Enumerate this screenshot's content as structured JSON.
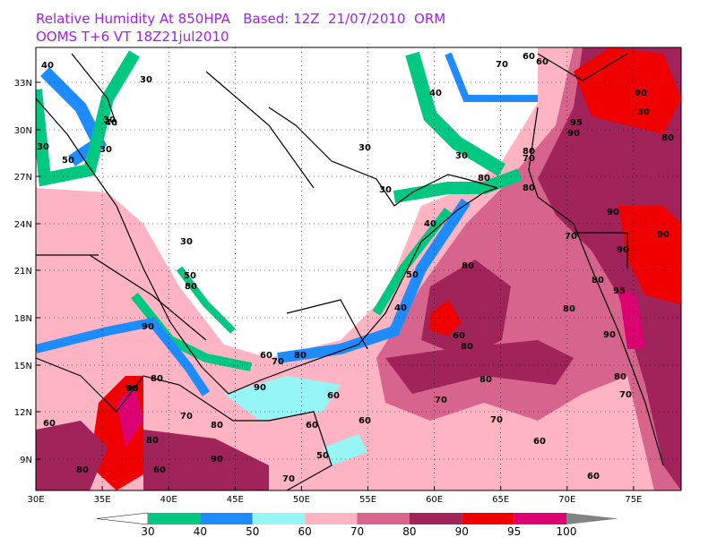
{
  "header": {
    "line1": "Relative Humidity At 850HPA   Based: 12Z  21/07/2010  ORM",
    "line2": "OOMS  T+6 VT 18Z21jul2010"
  },
  "map": {
    "lat_labels": [
      "33N",
      "30N",
      "27N",
      "24N",
      "21N",
      "18N",
      "15N",
      "12N",
      "9N"
    ],
    "lon_labels": [
      "30E",
      "35E",
      "40E",
      "45E",
      "50E",
      "55E",
      "60E",
      "65E",
      "70E",
      "75E"
    ],
    "contour_labels": [
      "40",
      "30",
      "40",
      "30",
      "50",
      "30",
      "30",
      "40",
      "70",
      "60",
      "60",
      "90",
      "30",
      "95",
      "90",
      "80",
      "30",
      "30",
      "70",
      "80",
      "80",
      "30",
      "40",
      "50",
      "40",
      "80",
      "80",
      "70",
      "90",
      "80",
      "90",
      "90",
      "95",
      "80",
      "60",
      "90",
      "80",
      "80",
      "80",
      "70",
      "70",
      "60",
      "70",
      "80",
      "70",
      "60",
      "60",
      "60",
      "90",
      "80",
      "80",
      "95",
      "90",
      "60",
      "80",
      "80",
      "30",
      "50",
      "60",
      "70",
      "50",
      "70",
      "60",
      "60",
      "80",
      "90",
      "90"
    ]
  },
  "colorbar": {
    "levels": [
      30,
      40,
      50,
      60,
      70,
      80,
      90,
      95,
      100
    ],
    "colors": [
      "#ffffff",
      "#00c882",
      "#1e8cff",
      "#96f5f5",
      "#ffb4c3",
      "#d7648c",
      "#a0235a",
      "#f00000",
      "#dc0073",
      "#828282"
    ]
  }
}
